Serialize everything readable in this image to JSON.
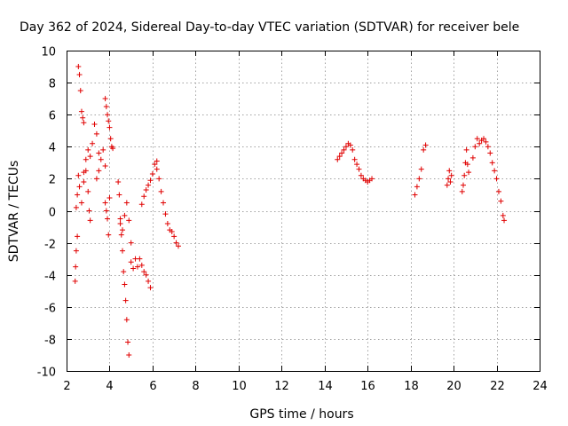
{
  "chart_data": {
    "type": "scatter",
    "title": "Day 362 of 2024, Sidereal Day-to-day VTEC variation (SDTVAR) for receiver bele",
    "xlabel": "GPS time / hours",
    "ylabel": "SDTVAR / TECUs",
    "xlim": [
      2,
      24
    ],
    "ylim": [
      -10,
      10
    ],
    "xticks": [
      2,
      4,
      6,
      8,
      10,
      12,
      14,
      16,
      18,
      20,
      22,
      24
    ],
    "yticks": [
      -10,
      -8,
      -6,
      -4,
      -2,
      0,
      2,
      4,
      6,
      8,
      10
    ],
    "xtick_labels": [
      "2",
      "4",
      "6",
      "8",
      "10",
      "12",
      "14",
      "16",
      "18",
      "20",
      "22",
      "24"
    ],
    "ytick_labels": [
      "-10",
      "-8",
      "-6",
      "-4",
      "-2",
      "0",
      "2",
      "4",
      "6",
      "8",
      "10"
    ],
    "grid": true,
    "marker": "+",
    "color": "#e00000",
    "series": [
      {
        "name": "SDTVAR",
        "segments": [
          {
            "x": [
              2.4,
              2.42,
              2.45,
              2.5,
              2.55,
              2.6,
              2.65,
              2.7,
              2.75,
              2.8
            ],
            "y": [
              -4.4,
              -3.5,
              -2.5,
              -1.6,
              9.0,
              8.5,
              7.5,
              6.2,
              5.8,
              5.5
            ]
          },
          {
            "x": [
              2.45,
              2.5,
              2.55,
              2.6,
              2.7,
              2.8,
              2.9,
              3.0,
              3.05,
              3.1
            ],
            "y": [
              0.2,
              1.0,
              2.2,
              1.5,
              0.5,
              1.8,
              2.5,
              1.2,
              0.0,
              -0.6
            ]
          },
          {
            "x": [
              2.8,
              2.9,
              3.0,
              3.1,
              3.2,
              3.3,
              3.4,
              3.5
            ],
            "y": [
              2.4,
              3.2,
              3.8,
              3.4,
              4.2,
              5.4,
              4.8,
              3.6
            ]
          },
          {
            "x": [
              3.4,
              3.5,
              3.6,
              3.7,
              3.8
            ],
            "y": [
              2.0,
              2.5,
              3.2,
              3.8,
              2.8
            ]
          },
          {
            "x": [
              3.8,
              3.85,
              3.9,
              3.95,
              4.0,
              4.05,
              4.1,
              4.15
            ],
            "y": [
              7.0,
              6.5,
              6.0,
              5.6,
              5.2,
              4.5,
              4.0,
              3.9
            ]
          },
          {
            "x": [
              3.8,
              3.85,
              3.9,
              3.95,
              4.0
            ],
            "y": [
              0.5,
              0.0,
              -0.5,
              -1.5,
              0.8
            ]
          },
          {
            "x": [
              4.4,
              4.45,
              4.5,
              4.55,
              4.6,
              4.65,
              4.7,
              4.75,
              4.8,
              4.85,
              4.9
            ],
            "y": [
              1.8,
              1.0,
              -0.5,
              -1.5,
              -2.5,
              -3.8,
              -4.6,
              -5.6,
              -6.8,
              -8.2,
              -9.0
            ]
          },
          {
            "x": [
              4.5,
              4.6,
              4.7,
              4.8,
              4.9,
              5.0
            ],
            "y": [
              -0.8,
              -1.2,
              -0.3,
              0.5,
              -0.6,
              -2.0
            ]
          },
          {
            "x": [
              5.0,
              5.1,
              5.2,
              5.3
            ],
            "y": [
              -3.2,
              -3.6,
              -3.0,
              -3.5
            ]
          },
          {
            "x": [
              5.4,
              5.5,
              5.6,
              5.7,
              5.8,
              5.9
            ],
            "y": [
              -3.0,
              -3.4,
              -3.8,
              -4.0,
              -4.4,
              -4.8
            ]
          },
          {
            "x": [
              5.5,
              5.6,
              5.7,
              5.8,
              5.9,
              6.0,
              6.1,
              6.2
            ],
            "y": [
              0.4,
              0.9,
              1.3,
              1.6,
              1.9,
              2.3,
              2.9,
              3.1
            ]
          },
          {
            "x": [
              6.2,
              6.3,
              6.4,
              6.5,
              6.6,
              6.7,
              6.8,
              6.9,
              7.0,
              7.1,
              7.2
            ],
            "y": [
              2.6,
              2.0,
              1.2,
              0.5,
              -0.2,
              -0.8,
              -1.2,
              -1.3,
              -1.6,
              -2.0,
              -2.2
            ]
          },
          {
            "x": [
              14.6,
              14.7,
              14.8,
              14.9,
              15.0,
              15.1,
              15.2,
              15.3,
              15.4,
              15.5,
              15.6,
              15.7,
              15.8,
              15.9,
              16.0,
              16.1,
              16.2
            ],
            "y": [
              3.2,
              3.4,
              3.6,
              3.8,
              4.0,
              4.2,
              4.1,
              3.8,
              3.2,
              2.9,
              2.6,
              2.2,
              2.0,
              1.9,
              1.8,
              1.9,
              2.0
            ]
          },
          {
            "x": [
              18.2,
              18.3,
              18.4,
              18.5,
              18.6,
              18.7
            ],
            "y": [
              1.0,
              1.5,
              2.0,
              2.6,
              3.8,
              4.1
            ]
          },
          {
            "x": [
              19.7,
              19.75,
              19.8,
              19.85,
              19.9
            ],
            "y": [
              1.6,
              2.0,
              2.5,
              1.8,
              2.2
            ]
          },
          {
            "x": [
              20.4,
              20.45,
              20.5,
              20.55,
              20.6,
              20.65,
              20.7
            ],
            "y": [
              1.2,
              1.6,
              2.2,
              3.0,
              3.8,
              2.9,
              2.4
            ]
          },
          {
            "x": [
              20.9,
              21.0,
              21.1,
              21.2,
              21.3,
              21.4,
              21.5,
              21.6,
              21.7,
              21.8,
              21.9,
              22.0,
              22.1,
              22.2,
              22.3,
              22.35
            ],
            "y": [
              3.3,
              4.0,
              4.5,
              4.2,
              4.4,
              4.5,
              4.3,
              4.0,
              3.6,
              3.0,
              2.5,
              2.0,
              1.2,
              0.6,
              -0.3,
              -0.6
            ]
          }
        ]
      }
    ]
  }
}
